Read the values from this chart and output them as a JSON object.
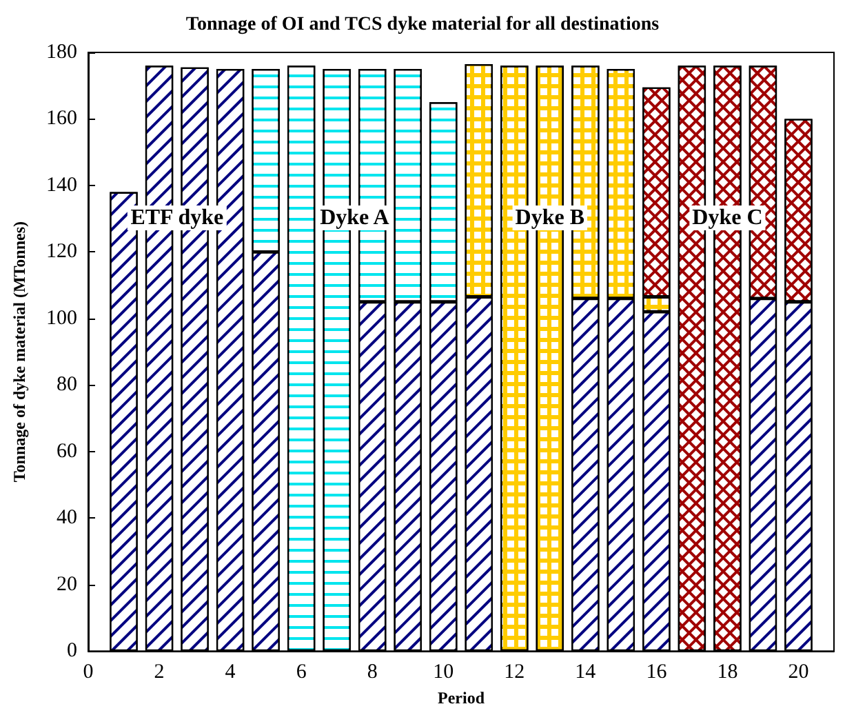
{
  "chart_data": {
    "type": "bar",
    "title": "Tonnage of OI and TCS dyke material for all destinations",
    "xlabel": "Period",
    "ylabel": "Tonnage of dyke material (MTonnes)",
    "stacked": true,
    "x": [
      1,
      2,
      3,
      4,
      5,
      6,
      7,
      8,
      9,
      10,
      11,
      12,
      13,
      14,
      15,
      16,
      17,
      18,
      19,
      20
    ],
    "series": [
      {
        "name": "ETF dyke",
        "color": "#000080",
        "values": [
          138,
          176,
          175.5,
          175,
          120,
          null,
          null,
          105,
          105,
          105,
          106.5,
          null,
          null,
          106,
          106,
          102,
          null,
          null,
          106,
          105
        ]
      },
      {
        "name": "Dyke A",
        "color": "#00e5ee",
        "values": [
          null,
          null,
          null,
          null,
          55,
          176,
          175,
          70,
          70,
          60,
          null,
          null,
          null,
          null,
          null,
          null,
          null,
          null,
          null,
          null
        ]
      },
      {
        "name": "Dyke B",
        "color": "#ffcc00",
        "values": [
          null,
          null,
          null,
          null,
          null,
          null,
          null,
          null,
          null,
          null,
          70,
          176,
          176,
          70,
          69,
          4.5,
          null,
          null,
          null,
          null
        ]
      },
      {
        "name": "Dyke C",
        "color": "#a00000",
        "values": [
          null,
          null,
          null,
          null,
          null,
          null,
          null,
          null,
          null,
          null,
          null,
          null,
          null,
          null,
          null,
          63,
          176,
          176,
          70,
          55
        ]
      }
    ],
    "xlim": [
      0,
      21
    ],
    "xticks": [
      0,
      2,
      4,
      6,
      8,
      10,
      12,
      14,
      16,
      18,
      20
    ],
    "ylim": [
      0,
      180
    ],
    "yticks": [
      0,
      20,
      40,
      60,
      80,
      100,
      120,
      140,
      160,
      180
    ],
    "grid": false
  }
}
